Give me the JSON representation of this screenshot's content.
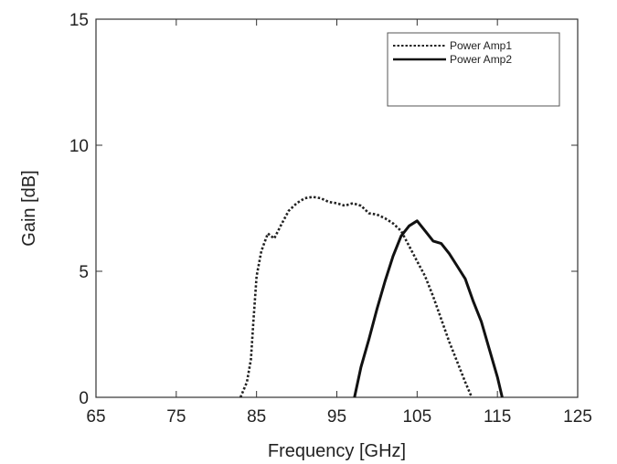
{
  "chart_data": {
    "type": "line",
    "xlabel": "Frequency [GHz]",
    "ylabel": "Gain [dB]",
    "xlim": [
      65,
      125
    ],
    "ylim": [
      0,
      15
    ],
    "xticks": [
      65,
      75,
      85,
      95,
      105,
      115,
      125
    ],
    "yticks": [
      0,
      5,
      10,
      15
    ],
    "grid": false,
    "legend_position": "top-right",
    "series": [
      {
        "name": "Power Amp1",
        "style": "dotted",
        "color": "#222222",
        "points": [
          [
            83.0,
            0.0
          ],
          [
            83.8,
            0.6
          ],
          [
            84.3,
            1.5
          ],
          [
            84.6,
            3.0
          ],
          [
            85.0,
            4.8
          ],
          [
            85.6,
            5.8
          ],
          [
            86.4,
            6.5
          ],
          [
            87.2,
            6.3
          ],
          [
            88.0,
            6.8
          ],
          [
            89.0,
            7.4
          ],
          [
            90.0,
            7.7
          ],
          [
            91.0,
            7.9
          ],
          [
            92.0,
            7.95
          ],
          [
            93.0,
            7.9
          ],
          [
            94.0,
            7.75
          ],
          [
            95.0,
            7.7
          ],
          [
            96.0,
            7.6
          ],
          [
            97.0,
            7.7
          ],
          [
            98.0,
            7.6
          ],
          [
            99.0,
            7.3
          ],
          [
            100.0,
            7.25
          ],
          [
            101.0,
            7.1
          ],
          [
            102.0,
            6.9
          ],
          [
            103.0,
            6.6
          ],
          [
            104.0,
            6.0
          ],
          [
            105.0,
            5.4
          ],
          [
            106.0,
            4.8
          ],
          [
            107.0,
            4.0
          ],
          [
            108.0,
            3.1
          ],
          [
            109.0,
            2.2
          ],
          [
            110.0,
            1.4
          ],
          [
            111.0,
            0.6
          ],
          [
            111.8,
            0.0
          ]
        ]
      },
      {
        "name": "Power Amp2",
        "style": "solid",
        "color": "#111111",
        "points": [
          [
            97.2,
            0.0
          ],
          [
            98.0,
            1.2
          ],
          [
            99.0,
            2.3
          ],
          [
            100.0,
            3.5
          ],
          [
            101.0,
            4.6
          ],
          [
            102.0,
            5.6
          ],
          [
            103.0,
            6.4
          ],
          [
            104.0,
            6.8
          ],
          [
            105.0,
            7.0
          ],
          [
            106.0,
            6.6
          ],
          [
            107.0,
            6.2
          ],
          [
            108.0,
            6.1
          ],
          [
            109.0,
            5.7
          ],
          [
            110.0,
            5.2
          ],
          [
            111.0,
            4.7
          ],
          [
            112.0,
            3.8
          ],
          [
            113.0,
            3.0
          ],
          [
            114.0,
            1.9
          ],
          [
            115.0,
            0.8
          ],
          [
            115.6,
            0.0
          ]
        ]
      }
    ]
  }
}
